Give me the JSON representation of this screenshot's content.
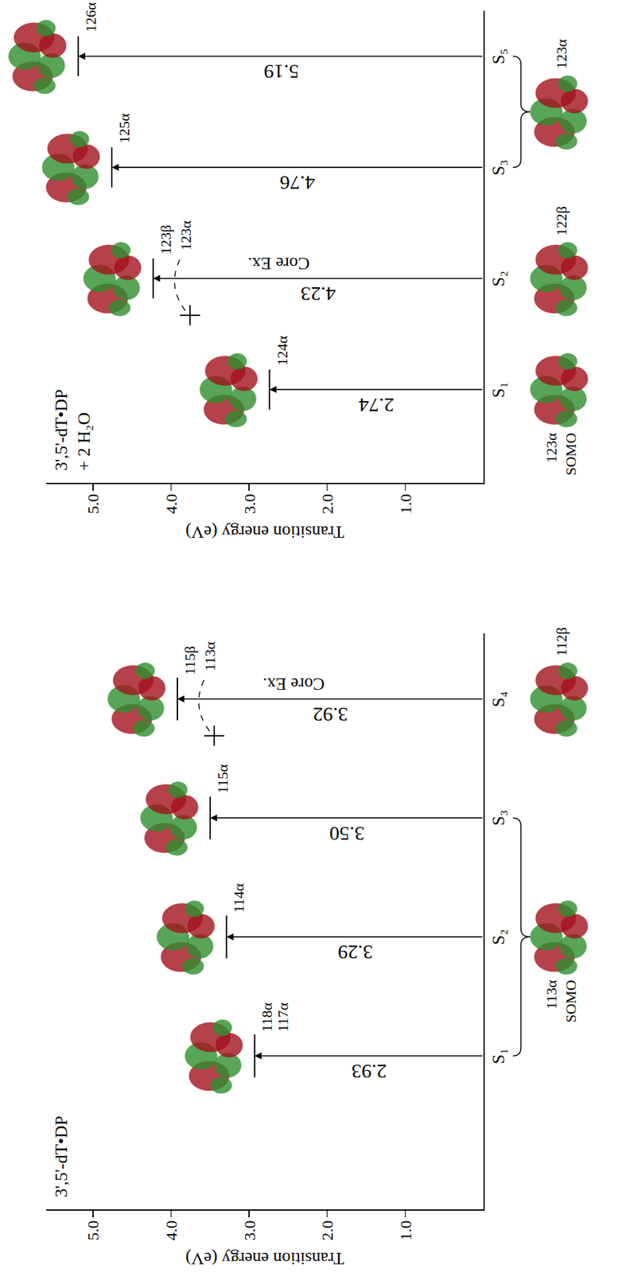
{
  "chart_data": [
    {
      "type": "energy_level",
      "title": "3',5'-dT•DP",
      "y_label": "Transition energy (eV)",
      "ylim": [
        0,
        5.6
      ],
      "yticks": [
        {
          "value": 1,
          "label": "1.0"
        },
        {
          "value": 2,
          "label": "2.0"
        },
        {
          "value": 3,
          "label": "3.0"
        },
        {
          "value": 4,
          "label": "4.0"
        },
        {
          "value": 5,
          "label": "5.0"
        }
      ],
      "data_labels": true,
      "transitions": [
        {
          "state": "S₁",
          "energy": 2.93,
          "value_label": "2.93",
          "orbitals": [
            "118α",
            "117α"
          ]
        },
        {
          "state": "S₂",
          "energy": 3.29,
          "value_label": "3.29",
          "orbitals": [
            "114α"
          ]
        },
        {
          "state": "S₃",
          "energy": 3.5,
          "value_label": "3.50",
          "orbitals": [
            "115α"
          ]
        },
        {
          "state": "S₄",
          "energy": 3.92,
          "value_label": "3.92",
          "orbitals": [
            "115β"
          ],
          "core_excitation": {
            "label": "Core Ex.",
            "orbital": "113α"
          }
        }
      ],
      "initial_orbitals": [
        {
          "states": [
            "S₁",
            "S₃"
          ],
          "label": "113α SOMO"
        },
        {
          "states": [
            "S₄"
          ],
          "label": "112β"
        }
      ]
    },
    {
      "type": "energy_level",
      "title": "3',5'-dT•DP + 2 H₂O",
      "y_label": "Transition energy (eV)",
      "ylim": [
        0,
        5.6
      ],
      "yticks": [
        {
          "value": 1,
          "label": "1.0"
        },
        {
          "value": 2,
          "label": "2.0"
        },
        {
          "value": 3,
          "label": "3.0"
        },
        {
          "value": 4,
          "label": "4.0"
        },
        {
          "value": 5,
          "label": "5.0"
        }
      ],
      "data_labels": true,
      "transitions": [
        {
          "state": "S₁",
          "energy": 2.74,
          "value_label": "2.74",
          "orbitals": [
            "124α"
          ]
        },
        {
          "state": "S₂",
          "energy": 4.23,
          "value_label": "4.23",
          "orbitals": [
            "123β"
          ],
          "core_excitation": {
            "label": "Core Ex.",
            "orbital": "123α"
          }
        },
        {
          "state": "S₃",
          "energy": 4.76,
          "value_label": "4.76",
          "orbitals": [
            "125α"
          ]
        },
        {
          "state": "S₅",
          "energy": 5.19,
          "value_label": "5.19",
          "orbitals": [
            "126α"
          ]
        }
      ],
      "initial_orbitals": [
        {
          "states": [
            "S₁"
          ],
          "label": "123α SOMO"
        },
        {
          "states": [
            "S₂"
          ],
          "label": "122β"
        },
        {
          "states": [
            "S₃",
            "S₅"
          ],
          "label": "123α"
        }
      ]
    }
  ]
}
